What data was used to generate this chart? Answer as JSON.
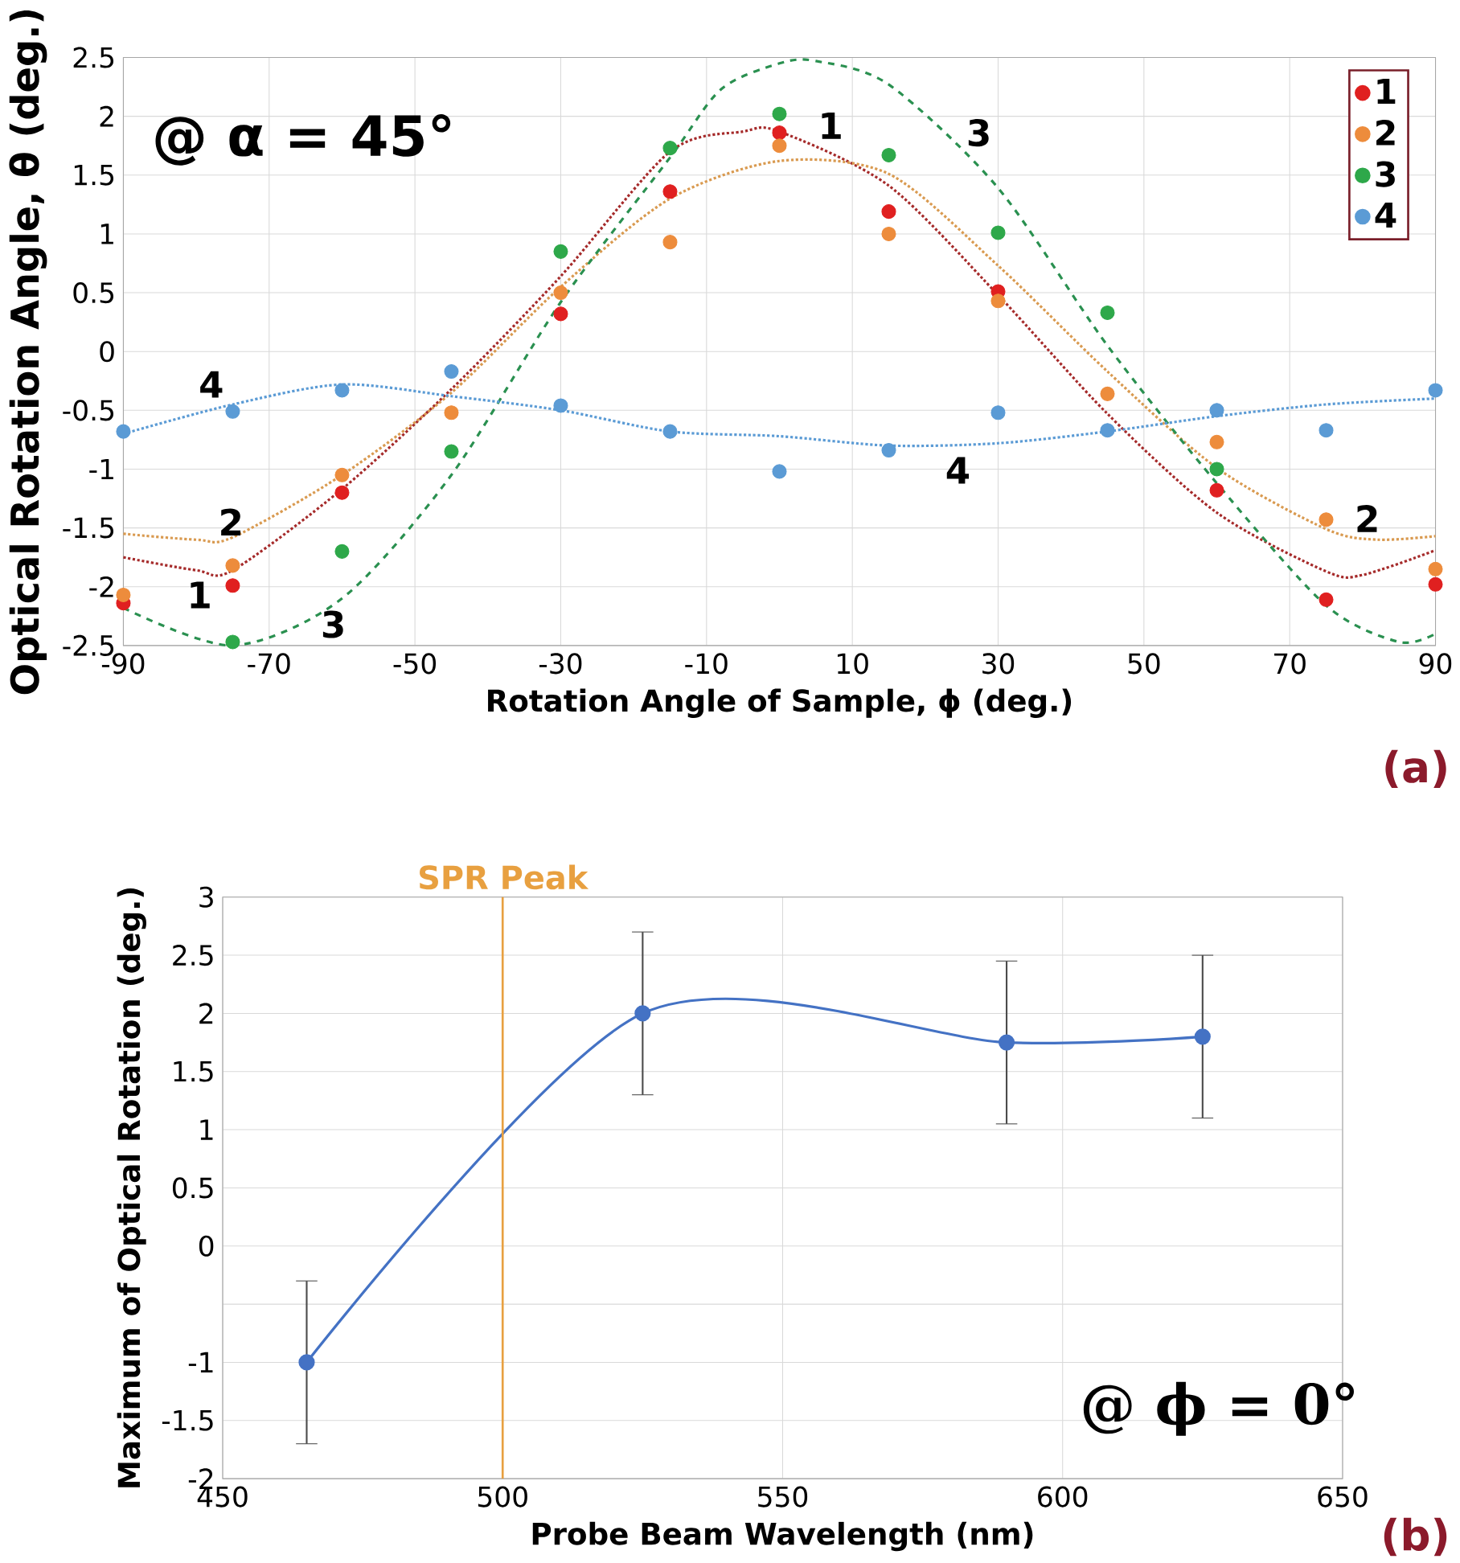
{
  "chart_data": [
    {
      "type": "scatter",
      "xlabel": "Rotation Angle of Sample, ϕ (deg.)",
      "ylabel": "Optical Rotation Angle, θ (deg.)",
      "x": [
        -90,
        -75,
        -60,
        -45,
        -30,
        -15,
        0,
        15,
        30,
        45,
        60,
        75,
        90
      ],
      "xlim": [
        -90,
        90
      ],
      "ylim": [
        -2.5,
        2.5
      ],
      "xticks": [
        -90,
        -70,
        -50,
        -30,
        -10,
        10,
        30,
        50,
        70,
        90
      ],
      "yticks": [
        -2.5,
        -2,
        -1.5,
        -1,
        -0.5,
        0,
        0.5,
        1,
        1.5,
        2,
        2.5
      ],
      "grid": true,
      "legend": "top right",
      "marker": "circle",
      "series": [
        {
          "name": "1",
          "color": "#e02020",
          "values": [
            -2.14,
            -1.99,
            -1.2,
            null,
            0.32,
            1.36,
            1.86,
            1.19,
            0.51,
            null,
            -1.18,
            -2.11,
            -1.98
          ]
        },
        {
          "name": "2",
          "color": "#ed8c3c",
          "values": [
            -2.07,
            -1.82,
            -1.05,
            -0.52,
            0.5,
            0.93,
            1.75,
            1.0,
            0.43,
            -0.36,
            -0.77,
            -1.43,
            -1.85
          ]
        },
        {
          "name": "3",
          "color": "#2ea84a",
          "values": [
            null,
            -2.47,
            -1.7,
            -0.85,
            0.85,
            1.73,
            2.02,
            1.67,
            1.01,
            0.33,
            -1.0,
            null,
            null
          ]
        },
        {
          "name": "4",
          "color": "#5b9bd5",
          "values": [
            -0.68,
            -0.51,
            -0.33,
            -0.17,
            -0.46,
            -0.68,
            -1.02,
            -0.84,
            -0.52,
            -0.67,
            -0.5,
            -0.67,
            -0.33
          ]
        },
        {
          "type": "line",
          "color": "#a52a2a",
          "line_style": "dotted",
          "marker": "none",
          "x": [
            -90,
            -80,
            -75,
            -60,
            -45,
            -30,
            -15,
            -5,
            0,
            15,
            30,
            45,
            60,
            75,
            80,
            90
          ],
          "values": [
            -1.75,
            -1.86,
            -1.86,
            -1.17,
            -0.32,
            0.64,
            1.7,
            1.87,
            1.87,
            1.41,
            0.48,
            -0.53,
            -1.37,
            -1.87,
            -1.9,
            -1.69
          ]
        },
        {
          "type": "line",
          "color": "#d99a50",
          "line_style": "dotted",
          "marker": "none",
          "x": [
            -90,
            -80,
            -75,
            -60,
            -45,
            -30,
            -15,
            0,
            15,
            30,
            45,
            60,
            75,
            82,
            90
          ],
          "values": [
            -1.55,
            -1.6,
            -1.58,
            -1.05,
            -0.35,
            0.55,
            1.3,
            1.62,
            1.51,
            0.73,
            -0.17,
            -0.99,
            -1.51,
            -1.6,
            -1.57
          ]
        },
        {
          "type": "line",
          "color": "#2a9050",
          "line_style": "dashed",
          "marker": "none",
          "x": [
            -90,
            -75,
            -60,
            -45,
            -30,
            -15,
            -8,
            0,
            5,
            15,
            30,
            45,
            60,
            75,
            85,
            90
          ],
          "values": [
            -2.18,
            -2.5,
            -2.1,
            -1.05,
            0.42,
            1.65,
            2.23,
            2.45,
            2.47,
            2.27,
            1.39,
            0.05,
            -1.12,
            -2.16,
            -2.47,
            -2.4
          ]
        },
        {
          "type": "line",
          "color": "#5b9bd5",
          "line_style": "dotted",
          "marker": "none",
          "x": [
            -90,
            -75,
            -60,
            -45,
            -30,
            -15,
            0,
            15,
            30,
            45,
            60,
            75,
            90
          ],
          "values": [
            -0.7,
            -0.45,
            -0.28,
            -0.38,
            -0.5,
            -0.68,
            -0.72,
            -0.8,
            -0.78,
            -0.68,
            -0.55,
            -0.45,
            -0.4
          ]
        }
      ],
      "annotations": [
        "@ α = 45°",
        "(a)",
        "1",
        "2",
        "3",
        "4",
        "1",
        "3",
        "4",
        "2"
      ]
    },
    {
      "type": "line",
      "xlabel": "Probe Beam Wavelength (nm)",
      "ylabel": "Maximum of Optical Rotation (deg.)",
      "x": [
        465,
        525,
        590,
        625
      ],
      "xlim": [
        450,
        650
      ],
      "ylim": [
        -2,
        3
      ],
      "xticks": [
        450,
        500,
        550,
        600,
        650
      ],
      "yticks": [
        -2,
        -1.5,
        -1,
        {
          "value": -0.5,
          "label": null
        },
        0,
        0.5,
        1,
        1.5,
        2,
        2.5,
        3
      ],
      "grid": true,
      "marker": "circle",
      "series": [
        {
          "color": "#4472c4",
          "values": [
            -1.0,
            2.0,
            1.75,
            1.8
          ],
          "errors": [
            0.7,
            0.7,
            0.7,
            0.7
          ]
        }
      ],
      "ref_lines": [
        {
          "axis": "x",
          "value": 500,
          "label": "SPR Peak",
          "color": "#e8a040"
        }
      ],
      "annotations": [
        "@ ϕ = 0°",
        "(b)"
      ]
    }
  ]
}
